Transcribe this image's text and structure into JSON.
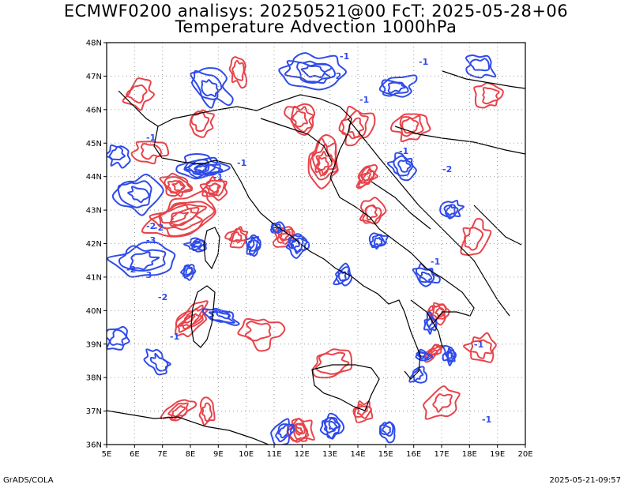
{
  "header": {
    "line1": "ECMWF0200 analisys: 20250521@00 FcT: 2025-05-28+06",
    "line2": "Temperature Advection 1000hPa"
  },
  "axes": {
    "lon_labels": [
      "5E",
      "6E",
      "7E",
      "8E",
      "9E",
      "10E",
      "11E",
      "12E",
      "13E",
      "14E",
      "15E",
      "16E",
      "17E",
      "18E",
      "19E",
      "20E"
    ],
    "lat_labels": [
      "36N",
      "37N",
      "38N",
      "39N",
      "40N",
      "41N",
      "42N",
      "43N",
      "44N",
      "45N",
      "46N",
      "47N",
      "48N"
    ],
    "lon_range": [
      5,
      20
    ],
    "lat_range": [
      36,
      48
    ],
    "grid": "dotted"
  },
  "contours": {
    "positive_color": "#e8434a",
    "negative_color": "#2f4bea",
    "border_color": "#000000",
    "labels": [
      "-1",
      "-2",
      "-3"
    ]
  },
  "footer": {
    "left": "GrADS/COLA",
    "right": "2025-05-21-09:57"
  }
}
